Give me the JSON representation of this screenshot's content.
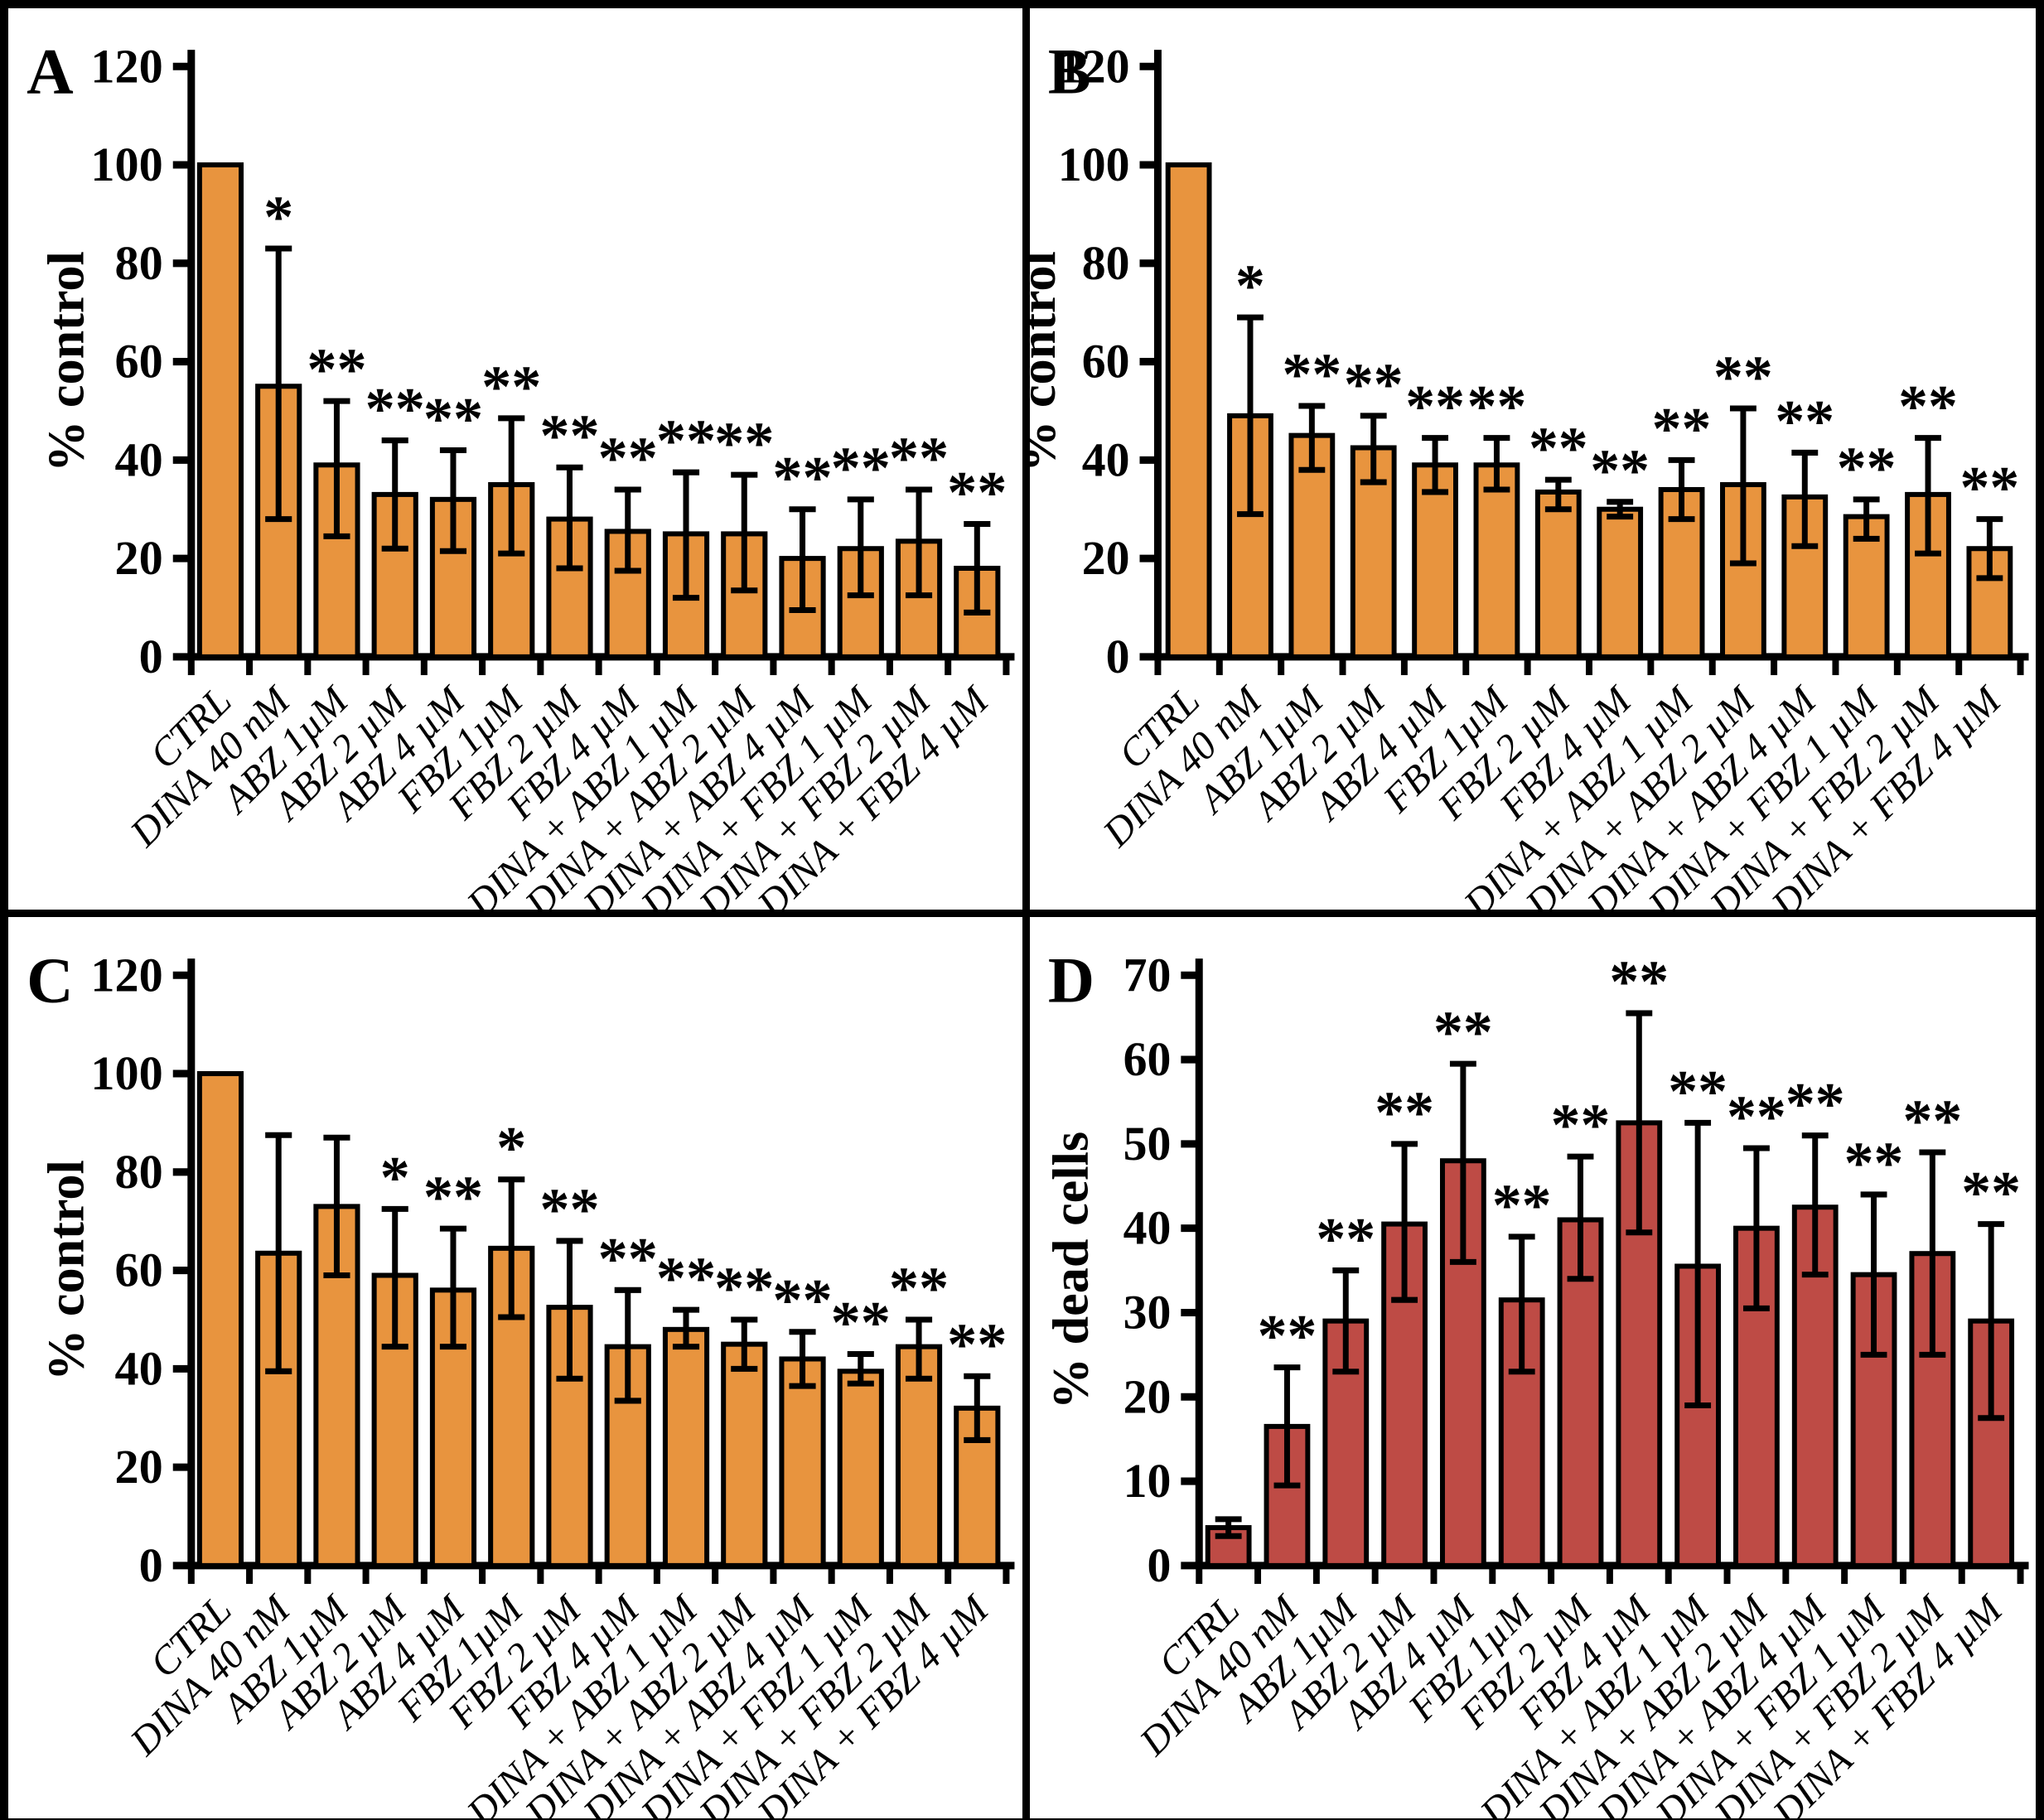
{
  "figure": {
    "description": "Four-panel bar chart figure (A, B, C, D) with error bars and significance markers",
    "panel_letters": [
      "A",
      "B",
      "C",
      "D"
    ]
  },
  "colors": {
    "bar_orange": "#E8943E",
    "bar_red": "#BE4B45",
    "axis_black": "#000000",
    "background": "#FFFFFF"
  },
  "chart_data": [
    {
      "panel_label": "A",
      "type": "bar",
      "title": "",
      "xlabel": "",
      "ylabel": "% control",
      "ylim": [
        0,
        120
      ],
      "ytick_step": 20,
      "grid": false,
      "legend": "none",
      "bar_color": "#E8943E",
      "categories": [
        "CTRL",
        "DINA 40 nM",
        "ABZ 1µM",
        "ABZ 2 µM",
        "ABZ 4 µM",
        "FBZ 1µM",
        "FBZ 2 µM",
        "FBZ 4 µM",
        "DINA + ABZ 1 µM",
        "DINA + ABZ 2 µM",
        "DINA + ABZ 4 µM",
        "DINA + FBZ 1 µM",
        "DINA + FBZ 2 µM",
        "DINA + FBZ 4 µM"
      ],
      "values": [
        100,
        55,
        39,
        33,
        32,
        35,
        28,
        25.5,
        25,
        25,
        20,
        22,
        23.5,
        18
      ],
      "err_low": [
        null,
        28,
        24.5,
        22,
        21.5,
        21,
        18,
        17.5,
        12,
        13.5,
        9.5,
        12.5,
        12.5,
        9
      ],
      "err_high": [
        null,
        83,
        52,
        44,
        42,
        48.5,
        38.5,
        34,
        37.5,
        37,
        30,
        32,
        34,
        27
      ],
      "sig": [
        "",
        "*",
        "**",
        "**",
        "**",
        "**",
        "**",
        "**",
        "**",
        "**",
        "**",
        "**",
        "**",
        "**"
      ]
    },
    {
      "panel_label": "B",
      "type": "bar",
      "title": "",
      "xlabel": "",
      "ylabel": "% control",
      "ylim": [
        0,
        120
      ],
      "ytick_step": 20,
      "grid": false,
      "legend": "none",
      "bar_color": "#E8943E",
      "categories": [
        "CTRL",
        "DINA 40 nM",
        "ABZ 1µM",
        "ABZ 2 µM",
        "ABZ 4 µM",
        "FBZ 1µM",
        "FBZ 2 µM",
        "FBZ 4 µM",
        "DINA + ABZ 1 µM",
        "DINA + ABZ 2 µM",
        "DINA + ABZ 4 µM",
        "DINA + FBZ 1 µM",
        "DINA + FBZ 2 µM",
        "DINA + FBZ 4 µM"
      ],
      "values": [
        100,
        49,
        45,
        42.5,
        39,
        39,
        33.5,
        30,
        34,
        35,
        32.5,
        28.5,
        33,
        22
      ],
      "err_low": [
        null,
        29,
        38,
        35.5,
        33.5,
        34,
        30,
        28.5,
        28,
        19,
        22.5,
        24,
        21,
        16
      ],
      "err_high": [
        null,
        69,
        51,
        49,
        44.5,
        44.5,
        36,
        31.5,
        40,
        50.5,
        41.5,
        32,
        44.5,
        28
      ],
      "sig": [
        "",
        "*",
        "**",
        "**",
        "**",
        "**",
        "**",
        "**",
        "**",
        "**",
        "**",
        "**",
        "**",
        "**"
      ]
    },
    {
      "panel_label": "C",
      "type": "bar",
      "title": "",
      "xlabel": "",
      "ylabel": "% control",
      "ylim": [
        0,
        120
      ],
      "ytick_step": 20,
      "grid": false,
      "legend": "none",
      "bar_color": "#E8943E",
      "categories": [
        "CTRL",
        "DINA 40 nM",
        "ABZ 1µM",
        "ABZ 2 µM",
        "ABZ 4 µM",
        "FBZ 1µM",
        "FBZ 2 µM",
        "FBZ 4 µM",
        "DINA + ABZ 1 µM",
        "DINA + ABZ 2 µM",
        "DINA + ABZ 4 µM",
        "DINA + FBZ 1 µM",
        "DINA + FBZ 2 µM",
        "DINA + FBZ 4 µM"
      ],
      "values": [
        100,
        63.5,
        73,
        59,
        56,
        64.5,
        52.5,
        44.5,
        48,
        45,
        42,
        39.5,
        44.5,
        32
      ],
      "err_low": [
        null,
        39.5,
        59,
        44.5,
        44.5,
        50.5,
        38,
        33.5,
        44.5,
        40,
        36.5,
        37,
        38,
        25.5
      ],
      "err_high": [
        null,
        87.5,
        87,
        72.5,
        68.5,
        78.5,
        66,
        56,
        52,
        50,
        47.5,
        43,
        50,
        38.5
      ],
      "sig": [
        "",
        "",
        "",
        "*",
        "**",
        "*",
        "**",
        "**",
        "**",
        "**",
        "**",
        "**",
        "**",
        "**"
      ]
    },
    {
      "panel_label": "D",
      "type": "bar",
      "title": "",
      "xlabel": "",
      "ylabel": "% dead cells",
      "ylim": [
        0,
        70
      ],
      "ytick_step": 10,
      "grid": false,
      "legend": "none",
      "bar_color": "#BE4B45",
      "categories": [
        "CTRL",
        "DINA 40 nM",
        "ABZ 1µM",
        "ABZ 2 µM",
        "ABZ 4 µM",
        "FBZ 1µM",
        "FBZ 2 µM",
        "FBZ 4 µM",
        "DINA + ABZ 1 µM",
        "DINA + ABZ 2 µM",
        "DINA + ABZ 4 µM",
        "DINA + FBZ 1 µM",
        "DINA + FBZ 2 µM",
        "DINA + FBZ 4 µM"
      ],
      "values": [
        4.5,
        16.5,
        29,
        40.5,
        48,
        31.5,
        41,
        52.5,
        35.5,
        40,
        42.5,
        34.5,
        37,
        29
      ],
      "err_low": [
        3.5,
        9.5,
        23,
        31.5,
        36,
        23,
        34,
        39.5,
        19,
        30.5,
        34.5,
        25,
        25,
        17.5
      ],
      "err_high": [
        5.5,
        23.5,
        35,
        50,
        59.5,
        39,
        48.5,
        65.5,
        52.5,
        49.5,
        51,
        44,
        49,
        40.5
      ],
      "sig": [
        "",
        "**",
        "**",
        "**",
        "**",
        "**",
        "**",
        "**",
        "**",
        "**",
        "**",
        "**",
        "**",
        "**"
      ]
    }
  ]
}
